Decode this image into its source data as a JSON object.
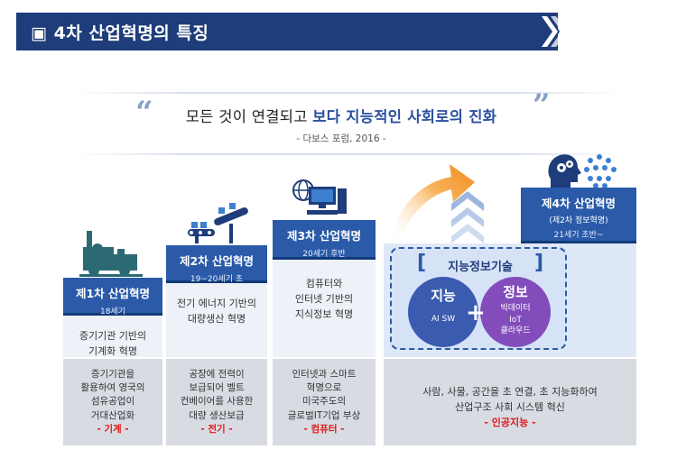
{
  "header": {
    "title": "▣ 4차 산업혁명의 특징"
  },
  "quote": {
    "open_mark": "“",
    "close_mark": "”",
    "text_part1": "모든 것이 연결되고 ",
    "text_highlight": "보다 지능적인 사회로의 진화",
    "source": "- 다보스 포럼, 2016 -"
  },
  "revolutions": [
    {
      "title": "제1차 산업혁명",
      "period": "18세기",
      "description": [
        "증기기관 기반의",
        "기계화 혁명"
      ],
      "impact": [
        "증기기관을",
        "활용하여 영국의",
        "섬유공업이",
        "거대산업화"
      ],
      "keyword": "- 기계 -"
    },
    {
      "title": "제2차 산업혁명",
      "period": "19~20세기 초",
      "description": [
        "전기 에너지 기반의",
        "대량생산 혁명"
      ],
      "impact": [
        "공장에 전력이",
        "보급되어 벨트",
        "컨베이어를 사용한",
        "대량 생산보급"
      ],
      "keyword": "- 전기 -"
    },
    {
      "title": "제3차 산업혁명",
      "period": "20세기 후반",
      "description": [
        "컴퓨터와",
        "인터넷 기반의",
        "지식정보 혁명"
      ],
      "impact": [
        "인터넷과 스마트",
        "혁명으로",
        "미국주도의",
        "글로벌IT기업 부상"
      ],
      "keyword": "- 컴퓨터 -"
    }
  ],
  "revolution4": {
    "title": "제4차 산업혁명",
    "subtitle": "(제2차 정보혁명)",
    "period": "21세기 초반~",
    "section_title": "지능정보기술",
    "bracket_left": "[",
    "bracket_right": "]",
    "circle_left": {
      "label": "지능",
      "sub": "AI SW"
    },
    "circle_right": {
      "label": "정보",
      "sub": [
        "빅데이터",
        "IoT",
        "클라우드"
      ]
    },
    "plus": "+",
    "impact": [
      "사람, 사물, 공간을 초 연결, 초 지능화하여",
      "산업구조 사회 시스템 혁신"
    ],
    "keyword": "- 인공지능 -"
  },
  "colors": {
    "banner": "#1f3d7a",
    "header_blue": "#2a5aa8",
    "desc_bg": "#eef2f8",
    "impact_bg": "#d8dbe2",
    "keyword_red": "#e01818",
    "circle_left": "#2c4fa8",
    "circle_right": "#7b3fb5",
    "arrow_orange": "#f08a1c",
    "chevron_blue": "#9cb6df"
  }
}
